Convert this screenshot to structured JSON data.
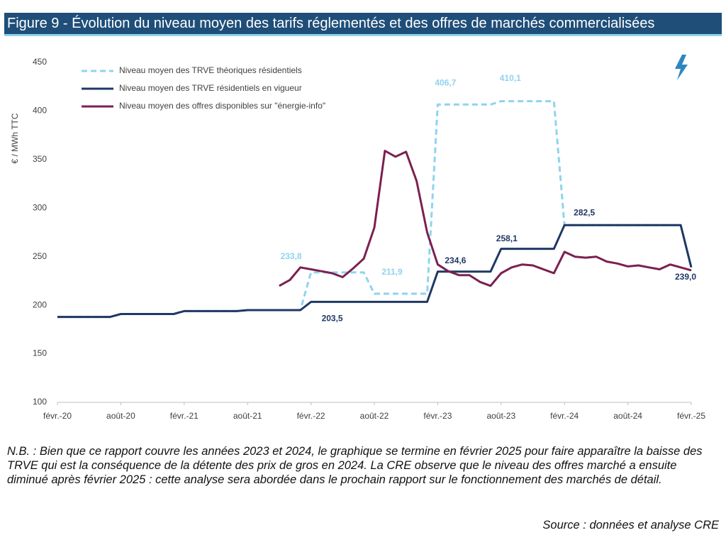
{
  "header": {
    "title": "Figure 9 - Évolution du niveau moyen des tarifs réglementés et des offres de marchés commercialisées"
  },
  "chart_data": {
    "type": "line",
    "y_label": "€ / MWh TTC",
    "categories": [
      "févr.-20",
      null,
      null,
      null,
      null,
      null,
      "août-20",
      null,
      null,
      null,
      null,
      null,
      "févr.-21",
      null,
      null,
      null,
      null,
      null,
      "août-21",
      null,
      null,
      null,
      null,
      null,
      "févr.-22",
      null,
      null,
      null,
      null,
      null,
      "août-22",
      null,
      null,
      null,
      null,
      null,
      "févr.-23",
      null,
      null,
      null,
      null,
      null,
      "août-23",
      null,
      null,
      null,
      null,
      null,
      "févr.-24",
      null,
      null,
      null,
      null,
      null,
      "août-24",
      null,
      null,
      null,
      null,
      null,
      "févr.-25"
    ],
    "ylim": [
      100,
      450
    ],
    "yticks": [
      100,
      150,
      200,
      250,
      300,
      350,
      400,
      450
    ],
    "grid": false,
    "legend": "top-left",
    "series": [
      {
        "name": "Niveau moyen des TRVE théoriques résidentiels",
        "color": "#8fd3f0",
        "dashed": true,
        "values": [
          188,
          188,
          188,
          188,
          188,
          188,
          191,
          191,
          191,
          191,
          191,
          191,
          194,
          194,
          194,
          194,
          194,
          194,
          195,
          195,
          195,
          195,
          195,
          195,
          233.8,
          233.8,
          233.8,
          233.8,
          233.8,
          233.8,
          211.9,
          211.9,
          211.9,
          211.9,
          211.9,
          211.9,
          406.7,
          406.7,
          406.7,
          406.7,
          406.7,
          406.7,
          410.1,
          410.1,
          410.1,
          410.1,
          410.1,
          410.1,
          282.5,
          282.5,
          282.5,
          282.5,
          282.5,
          282.5,
          282.5,
          282.5,
          282.5,
          282.5,
          282.5,
          282.5,
          239
        ],
        "value_labels": [
          null,
          null,
          null,
          null,
          null,
          null,
          null,
          null,
          null,
          null,
          null,
          null,
          null,
          null,
          null,
          null,
          null,
          null,
          null,
          null,
          null,
          null,
          null,
          null,
          "233,8",
          null,
          null,
          null,
          null,
          null,
          "211,9",
          null,
          null,
          null,
          null,
          null,
          "406,7",
          null,
          null,
          null,
          null,
          null,
          "410,1",
          null,
          null,
          null,
          null,
          null,
          null,
          null,
          null,
          null,
          null,
          null,
          null,
          null,
          null,
          null,
          null,
          null,
          null
        ]
      },
      {
        "name": "Niveau moyen des TRVE résidentiels en vigueur",
        "color": "#1f3864",
        "dashed": false,
        "values": [
          188,
          188,
          188,
          188,
          188,
          188,
          191,
          191,
          191,
          191,
          191,
          191,
          194,
          194,
          194,
          194,
          194,
          194,
          195,
          195,
          195,
          195,
          195,
          195,
          203.5,
          203.5,
          203.5,
          203.5,
          203.5,
          203.5,
          203.5,
          203.5,
          203.5,
          203.5,
          203.5,
          203.5,
          234.6,
          234.6,
          234.6,
          234.6,
          234.6,
          234.6,
          258.1,
          258.1,
          258.1,
          258.1,
          258.1,
          258.1,
          282.5,
          282.5,
          282.5,
          282.5,
          282.5,
          282.5,
          282.5,
          282.5,
          282.5,
          282.5,
          282.5,
          282.5,
          239
        ],
        "value_labels": [
          null,
          null,
          null,
          null,
          null,
          null,
          null,
          null,
          null,
          null,
          null,
          null,
          null,
          null,
          null,
          null,
          null,
          null,
          null,
          null,
          null,
          null,
          null,
          null,
          "203,5",
          null,
          null,
          null,
          null,
          null,
          null,
          null,
          null,
          null,
          null,
          null,
          "234,6",
          null,
          null,
          null,
          null,
          null,
          "258,1",
          null,
          null,
          null,
          null,
          null,
          "282,5",
          null,
          null,
          null,
          null,
          null,
          null,
          null,
          null,
          null,
          null,
          null,
          "239,0"
        ]
      },
      {
        "name": "Niveau moyen des offres disponibles sur \"énergie-info\"",
        "color": "#7b2050",
        "dashed": false,
        "values": [
          null,
          null,
          null,
          null,
          null,
          null,
          null,
          null,
          null,
          null,
          null,
          null,
          null,
          null,
          null,
          null,
          null,
          null,
          null,
          null,
          null,
          220,
          226,
          239,
          237,
          235,
          233,
          229,
          238,
          248,
          280,
          359,
          353,
          358,
          328,
          275,
          242,
          235,
          231,
          231,
          224,
          220,
          233,
          239,
          242,
          241,
          237,
          233,
          255,
          250,
          249,
          250,
          245,
          243,
          240,
          241,
          239,
          237,
          242,
          239,
          236
        ]
      }
    ]
  },
  "notes": {
    "nb": "N.B. : Bien que ce rapport couvre les années 2023 et 2024, le graphique se termine en février 2025 pour faire apparaître la baisse des TRVE qui est la conséquence de la détente des prix de gros en 2024. La CRE observe que le niveau des offres marché a ensuite diminué après février 2025 : cette analyse sera abordée dans le prochain rapport sur le fonctionnement des marchés de détail.",
    "source": "Source : données et analyse CRE"
  }
}
